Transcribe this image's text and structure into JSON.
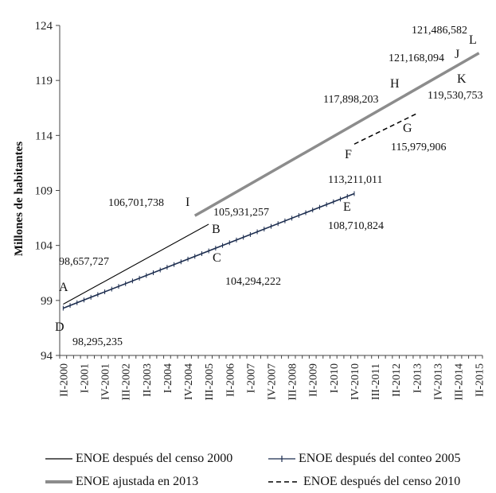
{
  "chart_data": {
    "type": "line",
    "ylabel": "Millones  de habitantes",
    "xlabel": "",
    "ylim": [
      94,
      124
    ],
    "yticks": [
      94,
      99,
      104,
      109,
      114,
      119,
      124
    ],
    "x_tick_labels": [
      "II-2000",
      "I-2001",
      "IV-2001",
      "III-2002",
      "II-2003",
      "I-2004",
      "IV-2004",
      "III-2005",
      "II-2006",
      "I-2007",
      "IV-2007",
      "III-2008",
      "II-2009",
      "I-2010",
      "IV-2010",
      "III-2011",
      "II-2012",
      "I-2013",
      "IV-2013",
      "III-2014",
      "II-2015"
    ],
    "x_tick_index": [
      0,
      3,
      6,
      9,
      12,
      15,
      18,
      21,
      24,
      27,
      30,
      33,
      36,
      39,
      42,
      45,
      48,
      51,
      54,
      57,
      60
    ],
    "grid": false,
    "legend_position": "bottom",
    "series": [
      {
        "name": "ENOE después del censo 2000",
        "style": "thin",
        "color": "#000000",
        "start_index": 0,
        "end_index": 21,
        "start_value": 98.657727,
        "end_value": 105.931257
      },
      {
        "name": "ENOE después del conteo 2005",
        "style": "markers",
        "color": "#1b2c4e",
        "start_index": 0,
        "end_index": 42,
        "start_value": 98.295235,
        "end_value": 108.710824
      },
      {
        "name": "ENOE ajustada en 2013",
        "style": "thick",
        "color": "#8c8c8c",
        "start_index": 19,
        "end_index": 60,
        "start_value": 106.701738,
        "end_value": 121.486582
      },
      {
        "name": "ENOE después del censo 2010",
        "style": "dashed",
        "color": "#000000",
        "start_index": 42,
        "end_index": 51,
        "start_value": 113.211011,
        "end_value": 115.979906
      }
    ],
    "annotations": [
      {
        "letter": "A",
        "value": "98,657,727"
      },
      {
        "letter": "B",
        "value": "105,931,257"
      },
      {
        "letter": "C",
        "value": "104,294,222"
      },
      {
        "letter": "D",
        "value": "98,295,235"
      },
      {
        "letter": "E",
        "value": "108,710,824"
      },
      {
        "letter": "F",
        "value": "113,211,011"
      },
      {
        "letter": "G",
        "value": "115,979,906"
      },
      {
        "letter": "H",
        "value": "117,898,203"
      },
      {
        "letter": "I",
        "value": "106,701,738"
      },
      {
        "letter": "J",
        "value": "121,168,094"
      },
      {
        "letter": "K",
        "value": "119,530,753"
      },
      {
        "letter": "L",
        "value": "121,486,582"
      }
    ]
  },
  "legend": {
    "item1": "ENOE después del censo 2000",
    "item2": "ENOE después del conteo 2005",
    "item3": "ENOE ajustada en 2013",
    "item4": "ENOE después del censo 2010"
  }
}
